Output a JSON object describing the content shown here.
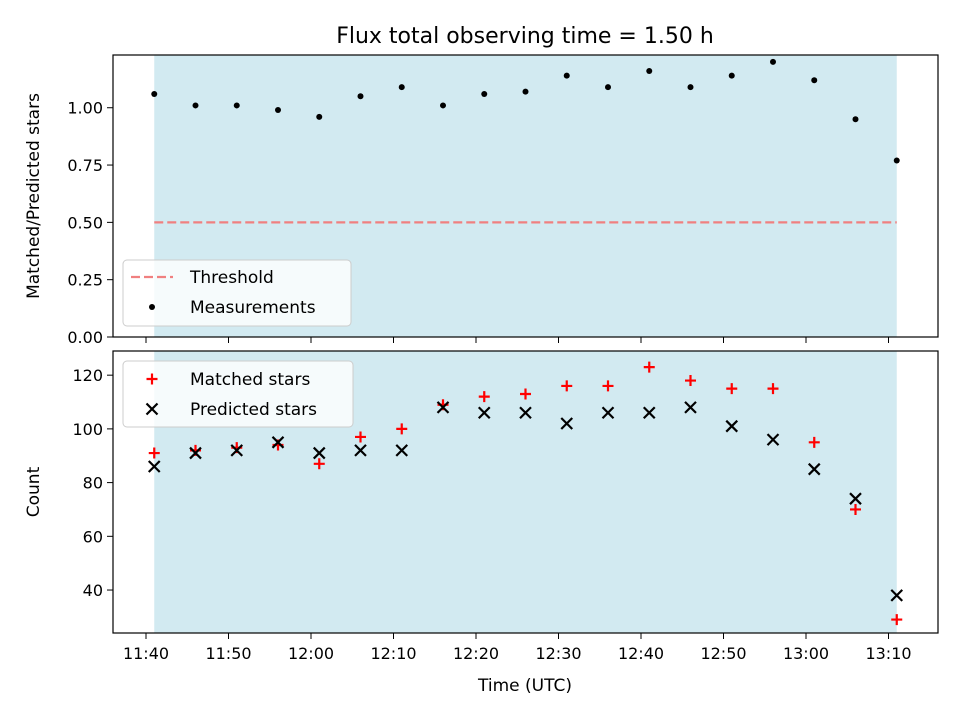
{
  "figure": {
    "title": "Flux total observing time = 1.50 h",
    "xlabel": "Time (UTC)"
  },
  "colors": {
    "shade": "#add8e6",
    "threshold": "#f08080",
    "measurement": "#000000",
    "matched": "#ff0000",
    "predicted": "#000000"
  },
  "chart_data": [
    {
      "type": "scatter",
      "ylabel": "Matched/Predicted stars",
      "ylim": [
        0.0,
        1.23
      ],
      "yticks": [
        "0.00",
        "0.25",
        "0.50",
        "0.75",
        "1.00"
      ],
      "ytick_values": [
        0.0,
        0.25,
        0.5,
        0.75,
        1.0
      ],
      "xlim": [
        "11:36",
        "13:16"
      ],
      "shaded_span": [
        "11:41",
        "13:11"
      ],
      "threshold": {
        "name": "Threshold",
        "value": 0.5,
        "from": "11:41",
        "to": "13:11"
      },
      "series": [
        {
          "name": "Measurements",
          "marker": "dot",
          "x": [
            "11:41",
            "11:46",
            "11:51",
            "11:56",
            "12:01",
            "12:06",
            "12:11",
            "12:16",
            "12:21",
            "12:26",
            "12:31",
            "12:36",
            "12:41",
            "12:46",
            "12:51",
            "12:56",
            "13:01",
            "13:06",
            "13:11"
          ],
          "values": [
            1.06,
            1.01,
            1.01,
            0.99,
            0.96,
            1.05,
            1.09,
            1.01,
            1.06,
            1.07,
            1.14,
            1.09,
            1.16,
            1.09,
            1.14,
            1.2,
            1.12,
            0.95,
            0.77
          ]
        }
      ],
      "legend": {
        "placement": "lower-left",
        "items": [
          "Threshold",
          "Measurements"
        ]
      }
    },
    {
      "type": "scatter",
      "ylabel": "Count",
      "ylim": [
        24,
        129
      ],
      "yticks": [
        "40",
        "60",
        "80",
        "100",
        "120"
      ],
      "ytick_values": [
        40,
        60,
        80,
        100,
        120
      ],
      "xlim": [
        "11:36",
        "13:16"
      ],
      "xticks": [
        "11:40",
        "11:50",
        "12:00",
        "12:10",
        "12:20",
        "12:30",
        "12:40",
        "12:50",
        "13:00",
        "13:10"
      ],
      "shaded_span": [
        "11:41",
        "13:11"
      ],
      "series": [
        {
          "name": "Matched stars",
          "marker": "plus",
          "x": [
            "11:41",
            "11:46",
            "11:51",
            "11:56",
            "12:01",
            "12:06",
            "12:11",
            "12:16",
            "12:21",
            "12:26",
            "12:31",
            "12:36",
            "12:41",
            "12:46",
            "12:51",
            "12:56",
            "13:01",
            "13:06",
            "13:11"
          ],
          "values": [
            91,
            92,
            93,
            94,
            87,
            97,
            100,
            109,
            112,
            113,
            116,
            116,
            123,
            118,
            115,
            115,
            95,
            70,
            29
          ]
        },
        {
          "name": "Predicted stars",
          "marker": "x",
          "x": [
            "11:41",
            "11:46",
            "11:51",
            "11:56",
            "12:01",
            "12:06",
            "12:11",
            "12:16",
            "12:21",
            "12:26",
            "12:31",
            "12:36",
            "12:41",
            "12:46",
            "12:51",
            "12:56",
            "13:01",
            "13:06",
            "13:11"
          ],
          "values": [
            86,
            91,
            92,
            95,
            91,
            92,
            92,
            108,
            106,
            106,
            102,
            106,
            106,
            108,
            101,
            96,
            85,
            74,
            38
          ]
        }
      ],
      "legend": {
        "placement": "upper-left",
        "items": [
          "Matched stars",
          "Predicted stars"
        ]
      }
    }
  ]
}
